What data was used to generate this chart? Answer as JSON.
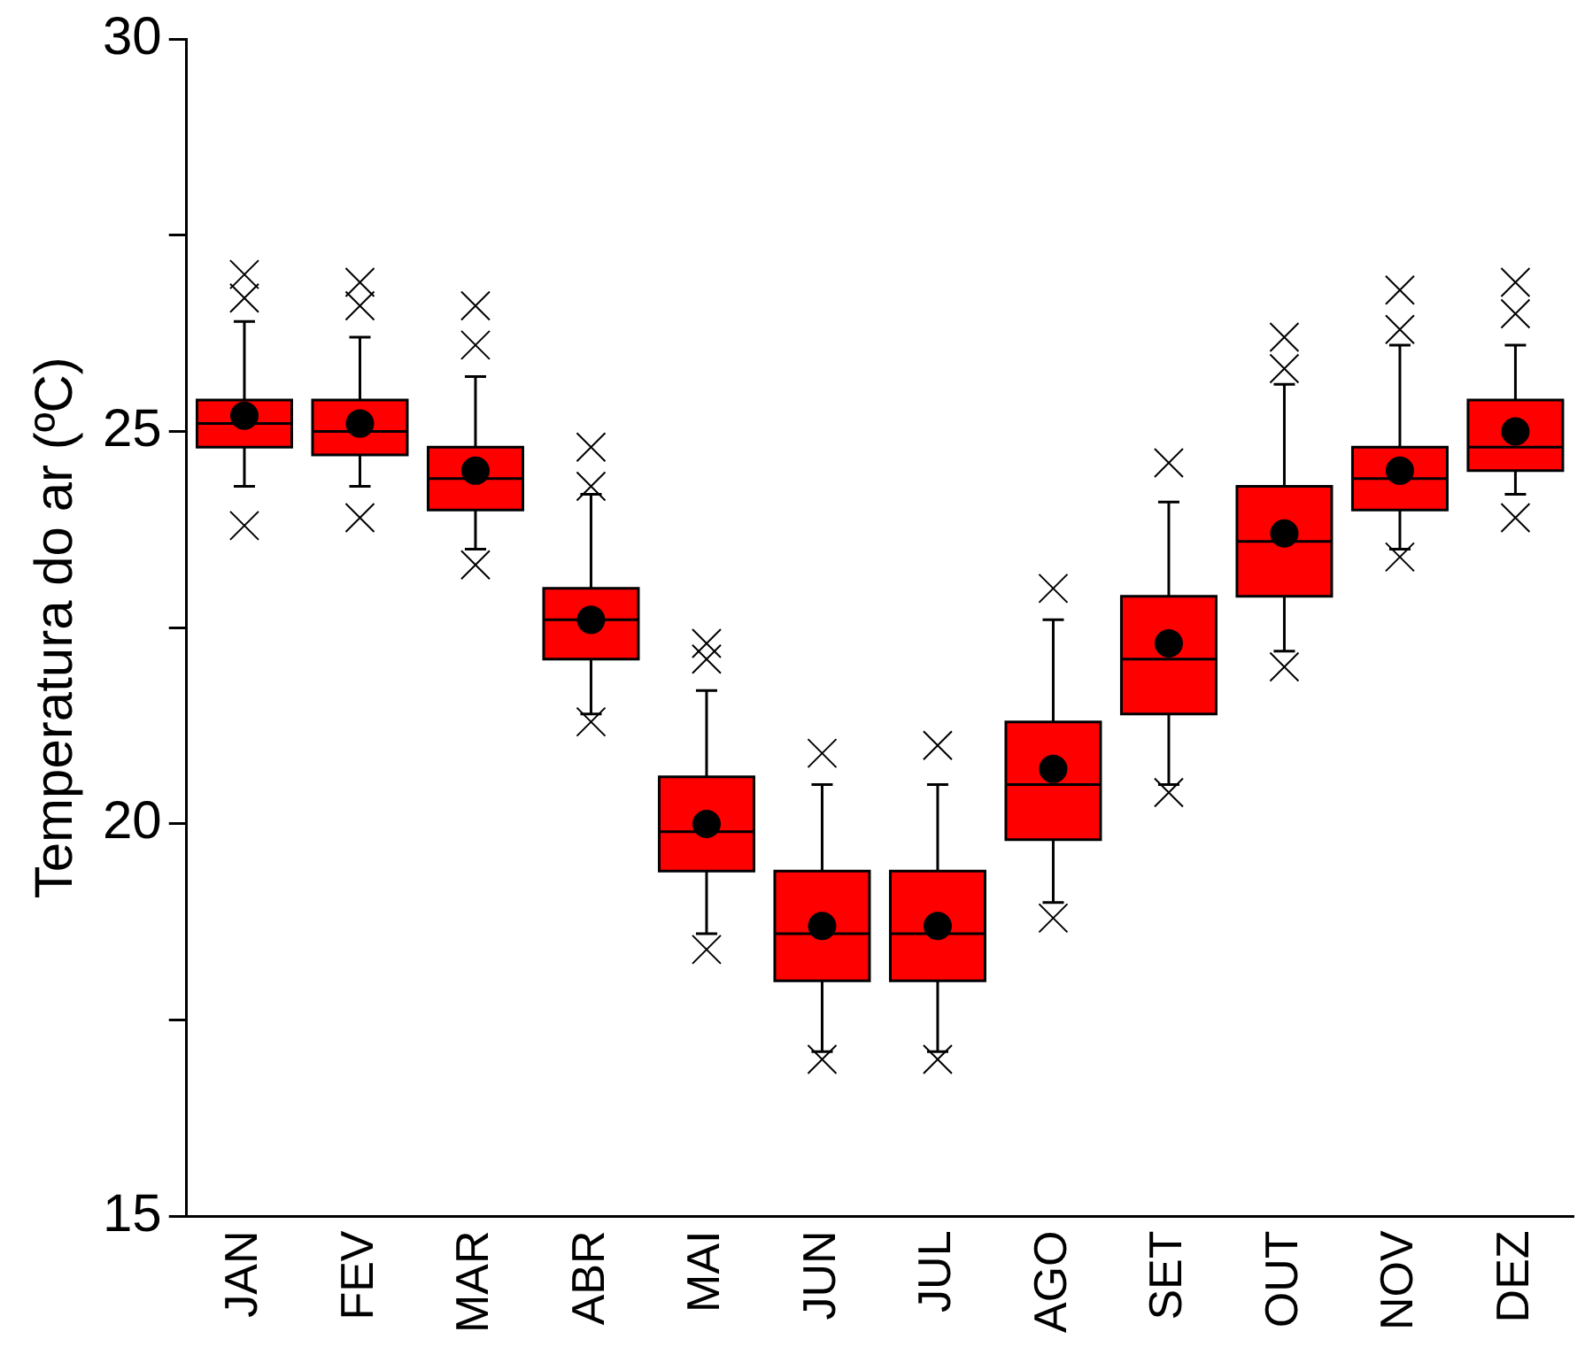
{
  "chart_data": {
    "type": "box",
    "ylabel": "Temperatura do ar (ºC)",
    "color": "#ff0000",
    "categories": [
      "JAN",
      "FEV",
      "MAR",
      "ABR",
      "MAI",
      "JUN",
      "JUL",
      "AGO",
      "SET",
      "OUT",
      "NOV",
      "DEZ"
    ],
    "boxes": [
      {
        "low": 24.3,
        "q1": 24.8,
        "median": 25.1,
        "q3": 25.4,
        "high": 26.4,
        "mean": 25.2,
        "outliers": [
          23.8,
          26.7,
          27.0
        ]
      },
      {
        "low": 24.3,
        "q1": 24.7,
        "median": 25.0,
        "q3": 25.4,
        "high": 26.2,
        "mean": 25.1,
        "outliers": [
          23.9,
          26.6,
          26.9
        ]
      },
      {
        "low": 23.5,
        "q1": 24.0,
        "median": 24.4,
        "q3": 24.8,
        "high": 25.7,
        "mean": 24.5,
        "outliers": [
          23.3,
          26.1,
          26.6
        ]
      },
      {
        "low": 21.4,
        "q1": 22.1,
        "median": 22.6,
        "q3": 23.0,
        "high": 24.2,
        "mean": 22.6,
        "outliers": [
          21.3,
          24.3,
          24.8
        ]
      },
      {
        "low": 18.6,
        "q1": 19.4,
        "median": 19.9,
        "q3": 20.6,
        "high": 21.7,
        "mean": 20.0,
        "outliers": [
          18.4,
          22.1,
          22.3
        ]
      },
      {
        "low": 17.1,
        "q1": 18.0,
        "median": 18.6,
        "q3": 19.4,
        "high": 20.5,
        "mean": 18.7,
        "outliers": [
          17.0,
          20.9
        ]
      },
      {
        "low": 17.1,
        "q1": 18.0,
        "median": 18.6,
        "q3": 19.4,
        "high": 20.5,
        "mean": 18.7,
        "outliers": [
          17.0,
          21.0
        ]
      },
      {
        "low": 19.0,
        "q1": 19.8,
        "median": 20.5,
        "q3": 21.3,
        "high": 22.6,
        "mean": 20.7,
        "outliers": [
          18.8,
          23.0
        ]
      },
      {
        "low": 20.5,
        "q1": 21.4,
        "median": 22.1,
        "q3": 22.9,
        "high": 24.1,
        "mean": 22.3,
        "outliers": [
          20.4,
          24.6
        ]
      },
      {
        "low": 22.2,
        "q1": 22.9,
        "median": 23.6,
        "q3": 24.3,
        "high": 25.6,
        "mean": 23.7,
        "outliers": [
          22.0,
          25.8,
          26.2
        ]
      },
      {
        "low": 23.5,
        "q1": 24.0,
        "median": 24.4,
        "q3": 24.8,
        "high": 26.1,
        "mean": 24.5,
        "outliers": [
          23.4,
          26.3,
          26.8
        ]
      },
      {
        "low": 24.2,
        "q1": 24.5,
        "median": 24.8,
        "q3": 25.4,
        "high": 26.1,
        "mean": 25.0,
        "outliers": [
          23.9,
          26.5,
          26.9
        ]
      }
    ],
    "ylim": [
      15,
      30
    ],
    "yticks": [
      15,
      {
        "value": 17.5,
        "label": null
      },
      20,
      {
        "value": 22.5,
        "label": null
      },
      25,
      {
        "value": 27.5,
        "label": null
      },
      30
    ]
  }
}
